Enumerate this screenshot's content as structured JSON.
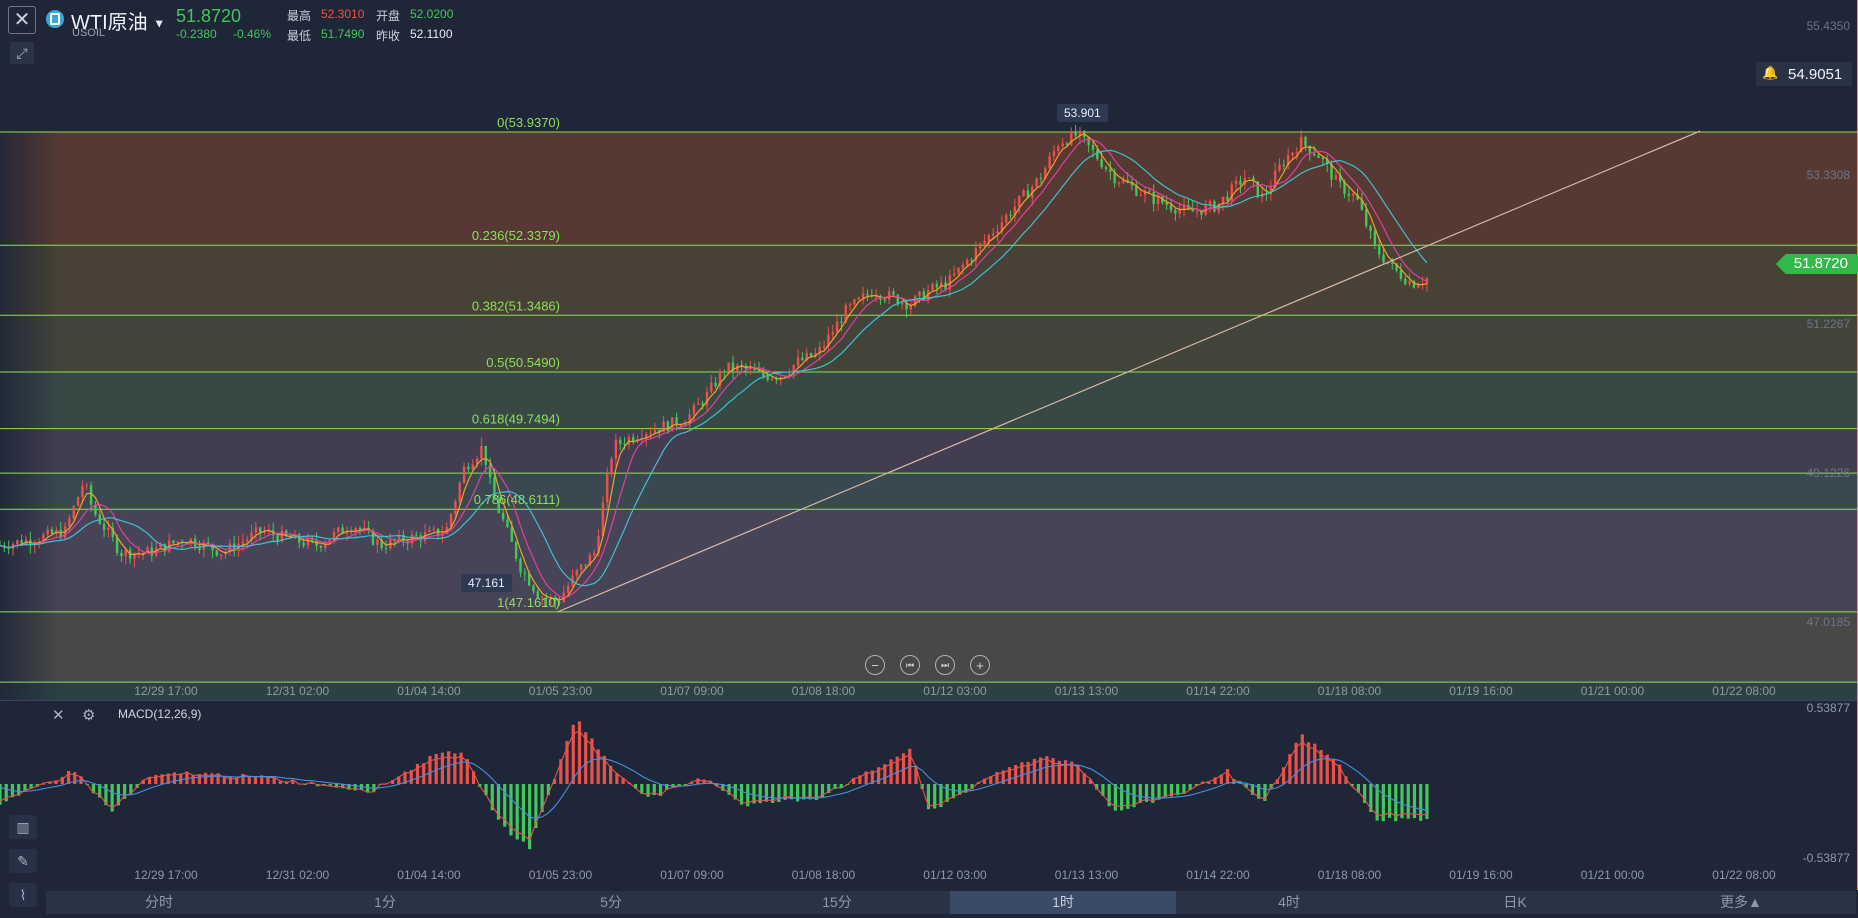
{
  "header": {
    "symbol_name": "WTI原油",
    "symbol_code": "USOIL",
    "last_price": "51.8720",
    "change": "-0.2380",
    "change_pct": "-0.46%",
    "stats": {
      "high_label": "最高",
      "high": "52.3010",
      "open_label": "开盘",
      "open": "52.0200",
      "low_label": "最低",
      "low": "51.7490",
      "prev_close_label": "昨收",
      "prev_close": "52.1100"
    }
  },
  "alert_price": "54.9051",
  "macd_label": "MACD(12,26,9)",
  "nav_icons": [
    "zoom-out-icon",
    "skip-back-icon",
    "skip-forward-icon",
    "zoom-in-icon"
  ],
  "timeframes": [
    "分时",
    "1分",
    "5分",
    "15分",
    "1时",
    "4时",
    "日K",
    "更多▲"
  ],
  "active_timeframe": "1时",
  "colors": {
    "up": "#e8524b",
    "down": "#42c85a",
    "fib_line": "#8de05a",
    "ma_pink": "#e040a0",
    "ma_cyan": "#3fc0d0",
    "ma_orange": "#f0a030"
  },
  "chart_data": [
    {
      "type": "candlestick",
      "x_ticks": [
        "12/29 17:00",
        "12/31 02:00",
        "01/04 14:00",
        "01/05 23:00",
        "01/07 09:00",
        "01/08 18:00",
        "01/12 03:00",
        "01/13 13:00",
        "01/14 22:00",
        "01/18 08:00",
        "01/19 16:00",
        "01/21 00:00",
        "01/22 08:00"
      ],
      "y_ticks": [
        "55.4350",
        "53.3308",
        "51.2267",
        "49.1226",
        "47.0185"
      ],
      "ylim": [
        46.2,
        55.8
      ],
      "last_price": 51.872,
      "high_marker": "53.901",
      "low_marker": "47.161",
      "fibonacci": {
        "levels": [
          {
            "label": "0(53.9370)",
            "value": 53.937
          },
          {
            "label": "0.236(52.3379)",
            "value": 52.3379
          },
          {
            "label": "0.382(51.3486)",
            "value": 51.3486
          },
          {
            "label": "0.5(50.5490)",
            "value": 50.549
          },
          {
            "label": "0.618(49.7494)",
            "value": 49.7494
          },
          {
            "label": "0.786(48.6111)",
            "value": 48.6111
          },
          {
            "label": "1(47.1610)",
            "value": 47.161
          }
        ],
        "extra_lines": [
          49.12,
          46.17
        ]
      },
      "trendline": [
        {
          "x": 0.3,
          "y": 47.16
        },
        {
          "x": 0.915,
          "y": 53.95
        }
      ],
      "price_path": [
        [
          0.0,
          48.1
        ],
        [
          0.02,
          48.2
        ],
        [
          0.035,
          48.3
        ],
        [
          0.045,
          49.0
        ],
        [
          0.05,
          48.6
        ],
        [
          0.065,
          48.0
        ],
        [
          0.08,
          48.0
        ],
        [
          0.1,
          48.2
        ],
        [
          0.12,
          48.0
        ],
        [
          0.14,
          48.3
        ],
        [
          0.155,
          48.2
        ],
        [
          0.17,
          48.1
        ],
        [
          0.19,
          48.4
        ],
        [
          0.205,
          48.1
        ],
        [
          0.22,
          48.2
        ],
        [
          0.24,
          48.3
        ],
        [
          0.25,
          49.2
        ],
        [
          0.26,
          49.5
        ],
        [
          0.265,
          48.8
        ],
        [
          0.27,
          48.5
        ],
        [
          0.28,
          47.8
        ],
        [
          0.29,
          47.4
        ],
        [
          0.3,
          47.3
        ],
        [
          0.31,
          47.7
        ],
        [
          0.32,
          48.0
        ],
        [
          0.33,
          49.5
        ],
        [
          0.345,
          49.7
        ],
        [
          0.36,
          49.8
        ],
        [
          0.37,
          49.9
        ],
        [
          0.38,
          50.2
        ],
        [
          0.39,
          50.6
        ],
        [
          0.4,
          50.6
        ],
        [
          0.41,
          50.5
        ],
        [
          0.42,
          50.5
        ],
        [
          0.43,
          50.7
        ],
        [
          0.44,
          50.8
        ],
        [
          0.455,
          51.4
        ],
        [
          0.47,
          51.7
        ],
        [
          0.48,
          51.6
        ],
        [
          0.49,
          51.5
        ],
        [
          0.5,
          51.7
        ],
        [
          0.51,
          51.8
        ],
        [
          0.53,
          52.4
        ],
        [
          0.55,
          53.0
        ],
        [
          0.56,
          53.3
        ],
        [
          0.57,
          53.8
        ],
        [
          0.58,
          53.9
        ],
        [
          0.59,
          53.6
        ],
        [
          0.6,
          53.3
        ],
        [
          0.62,
          53.0
        ],
        [
          0.64,
          52.8
        ],
        [
          0.655,
          52.9
        ],
        [
          0.67,
          53.3
        ],
        [
          0.68,
          53.0
        ],
        [
          0.69,
          53.5
        ],
        [
          0.7,
          53.8
        ],
        [
          0.71,
          53.6
        ],
        [
          0.72,
          53.2
        ],
        [
          0.73,
          53.0
        ],
        [
          0.74,
          52.3
        ],
        [
          0.75,
          52.0
        ],
        [
          0.76,
          51.8
        ],
        [
          0.768,
          51.87
        ]
      ]
    },
    {
      "type": "macd",
      "title": "MACD(12,26,9)",
      "y_ticks": [
        "0.53877",
        "-0.53877"
      ],
      "ylim": [
        -0.53877,
        0.53877
      ],
      "x_ticks": [
        "12/29 17:00",
        "12/31 02:00",
        "01/04 14:00",
        "01/05 23:00",
        "01/07 09:00",
        "01/08 18:00",
        "01/12 03:00",
        "01/13 13:00",
        "01/14 22:00",
        "01/18 08:00",
        "01/19 16:00",
        "01/21 00:00",
        "01/22 08:00"
      ],
      "histogram_keypoints": [
        [
          0.0,
          -0.15
        ],
        [
          0.04,
          0.1
        ],
        [
          0.06,
          -0.2
        ],
        [
          0.08,
          0.05
        ],
        [
          0.1,
          0.08
        ],
        [
          0.14,
          0.05
        ],
        [
          0.2,
          -0.05
        ],
        [
          0.24,
          0.25
        ],
        [
          0.25,
          0.2
        ],
        [
          0.27,
          -0.3
        ],
        [
          0.285,
          -0.45
        ],
        [
          0.3,
          0.1
        ],
        [
          0.31,
          0.48
        ],
        [
          0.33,
          0.1
        ],
        [
          0.35,
          -0.1
        ],
        [
          0.38,
          0.05
        ],
        [
          0.4,
          -0.15
        ],
        [
          0.44,
          -0.1
        ],
        [
          0.47,
          0.1
        ],
        [
          0.49,
          0.25
        ],
        [
          0.5,
          -0.2
        ],
        [
          0.54,
          0.1
        ],
        [
          0.56,
          0.2
        ],
        [
          0.58,
          0.15
        ],
        [
          0.6,
          -0.2
        ],
        [
          0.64,
          -0.05
        ],
        [
          0.66,
          0.1
        ],
        [
          0.68,
          -0.15
        ],
        [
          0.7,
          0.35
        ],
        [
          0.72,
          0.15
        ],
        [
          0.74,
          -0.25
        ],
        [
          0.768,
          -0.25
        ]
      ]
    }
  ]
}
